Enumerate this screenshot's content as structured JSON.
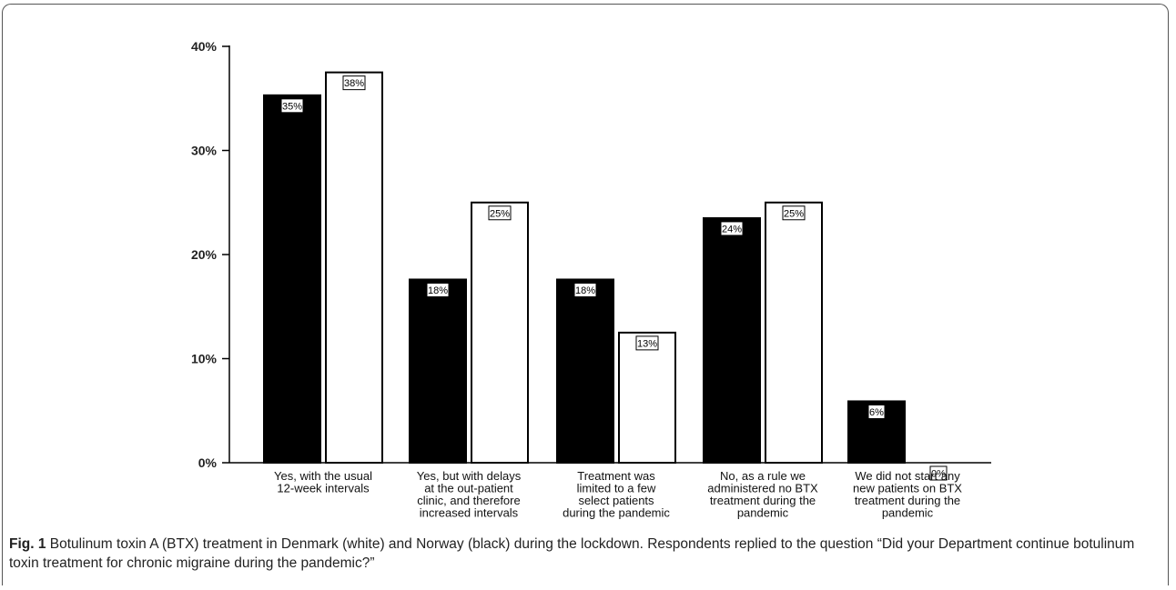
{
  "chart_data": {
    "type": "bar",
    "categories": [
      [
        "Yes, with the usual",
        "12-week intervals"
      ],
      [
        "Yes, but with delays",
        "at the out-patient",
        "clinic, and therefore",
        "increased intervals"
      ],
      [
        "Treatment was",
        "limited to a few",
        "select patients",
        "during the pandemic"
      ],
      [
        "No, as a rule we",
        "administered no BTX",
        "treatment during the",
        "pandemic"
      ],
      [
        "We did not start any",
        "new patients on BTX",
        "treatment during the",
        "pandemic"
      ]
    ],
    "series": [
      {
        "color": "#000000",
        "values": [
          35.3,
          17.6,
          17.6,
          23.5,
          5.9
        ],
        "labels": [
          "35%",
          "18%",
          "18%",
          "24%",
          "6%"
        ]
      },
      {
        "color": "#ffffff",
        "values": [
          37.5,
          25.0,
          12.5,
          25.0,
          0.0
        ],
        "labels": [
          "38%",
          "25%",
          "13%",
          "25%",
          "0%"
        ]
      }
    ],
    "yticks": [
      "0%",
      "10%",
      "20%",
      "30%",
      "40%"
    ],
    "ylim": [
      0,
      40
    ],
    "grid": false
  },
  "caption": {
    "label": "Fig. 1",
    "text": " Botulinum toxin A (BTX) treatment in Denmark (white) and Norway (black) during the lockdown. Respondents replied to the question “Did your Department continue botulinum toxin treatment for chronic migraine during the pandemic?”"
  }
}
